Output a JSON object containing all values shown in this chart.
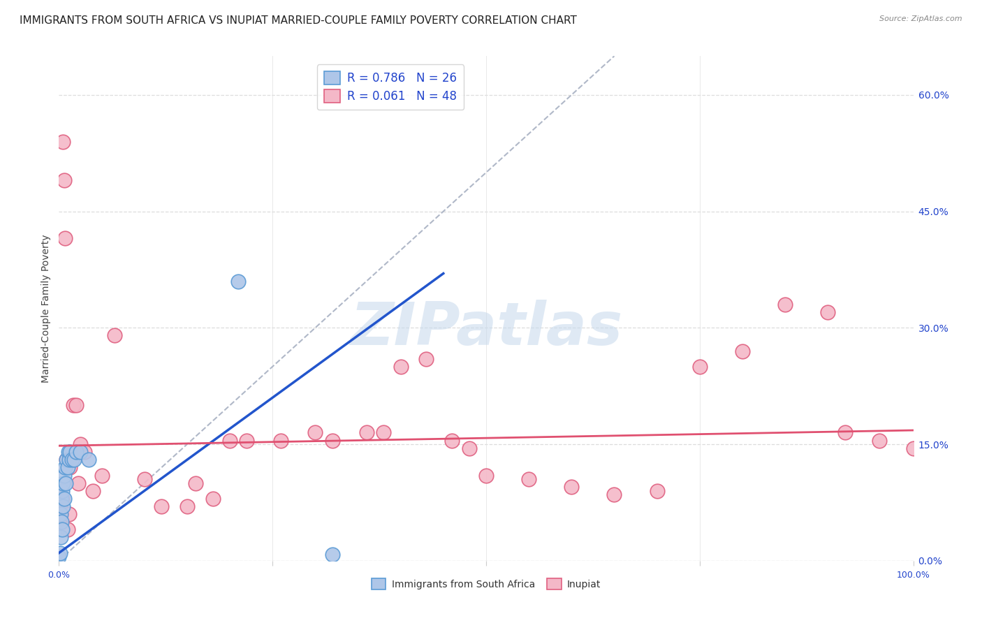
{
  "title": "IMMIGRANTS FROM SOUTH AFRICA VS INUPIAT MARRIED-COUPLE FAMILY POVERTY CORRELATION CHART",
  "source": "Source: ZipAtlas.com",
  "ylabel": "Married-Couple Family Poverty",
  "xlim": [
    0,
    1.0
  ],
  "ylim": [
    0,
    0.65
  ],
  "right_yticks": [
    0.0,
    0.15,
    0.3,
    0.45,
    0.6
  ],
  "right_yticklabels": [
    "0.0%",
    "15.0%",
    "30.0%",
    "45.0%",
    "60.0%"
  ],
  "xticks": [
    0.0,
    0.25,
    0.5,
    0.75,
    1.0
  ],
  "xticklabels": [
    "0.0%",
    "",
    "",
    "",
    "100.0%"
  ],
  "blue_R": 0.786,
  "blue_N": 26,
  "pink_R": 0.061,
  "pink_N": 48,
  "blue_color": "#aec6e8",
  "blue_edge_color": "#5b9bd5",
  "pink_color": "#f4b8c8",
  "pink_edge_color": "#e06080",
  "blue_line_color": "#2255cc",
  "pink_line_color": "#e05070",
  "diag_line_color": "#b0b8c8",
  "legend_R_color": "#2244cc",
  "blue_scatter_x": [
    0.0,
    0.001,
    0.002,
    0.002,
    0.003,
    0.003,
    0.004,
    0.004,
    0.005,
    0.005,
    0.006,
    0.006,
    0.007,
    0.008,
    0.009,
    0.01,
    0.011,
    0.012,
    0.013,
    0.015,
    0.018,
    0.02,
    0.025,
    0.035,
    0.21,
    0.32
  ],
  "blue_scatter_y": [
    0.005,
    0.01,
    0.03,
    0.06,
    0.08,
    0.05,
    0.09,
    0.04,
    0.1,
    0.07,
    0.11,
    0.08,
    0.12,
    0.1,
    0.13,
    0.12,
    0.14,
    0.13,
    0.14,
    0.13,
    0.13,
    0.14,
    0.14,
    0.13,
    0.36,
    0.008
  ],
  "pink_scatter_x": [
    0.0,
    0.001,
    0.002,
    0.004,
    0.005,
    0.006,
    0.007,
    0.009,
    0.01,
    0.012,
    0.013,
    0.015,
    0.017,
    0.02,
    0.023,
    0.025,
    0.03,
    0.04,
    0.05,
    0.065,
    0.1,
    0.12,
    0.15,
    0.16,
    0.18,
    0.2,
    0.22,
    0.26,
    0.3,
    0.32,
    0.36,
    0.38,
    0.4,
    0.43,
    0.46,
    0.48,
    0.5,
    0.55,
    0.6,
    0.65,
    0.7,
    0.75,
    0.8,
    0.85,
    0.9,
    0.92,
    0.96,
    1.0
  ],
  "pink_scatter_y": [
    0.05,
    0.07,
    0.06,
    0.08,
    0.54,
    0.49,
    0.415,
    0.13,
    0.04,
    0.06,
    0.12,
    0.13,
    0.2,
    0.2,
    0.1,
    0.15,
    0.14,
    0.09,
    0.11,
    0.29,
    0.105,
    0.07,
    0.07,
    0.1,
    0.08,
    0.155,
    0.155,
    0.155,
    0.165,
    0.155,
    0.165,
    0.165,
    0.25,
    0.26,
    0.155,
    0.145,
    0.11,
    0.105,
    0.095,
    0.085,
    0.09,
    0.25,
    0.27,
    0.33,
    0.32,
    0.165,
    0.155,
    0.145
  ],
  "blue_line_x": [
    0.0,
    0.45
  ],
  "blue_line_y": [
    0.01,
    0.37
  ],
  "pink_line_x": [
    0.0,
    1.0
  ],
  "pink_line_y": [
    0.148,
    0.168
  ],
  "diag_line_x": [
    0.0,
    0.65
  ],
  "diag_line_y": [
    0.0,
    0.65
  ],
  "watermark_text": "ZIPatlas",
  "background_color": "#ffffff",
  "grid_color": "#dddddd",
  "title_fontsize": 11,
  "axis_fontsize": 9,
  "tick_fontsize": 9,
  "legend_fontsize": 12
}
